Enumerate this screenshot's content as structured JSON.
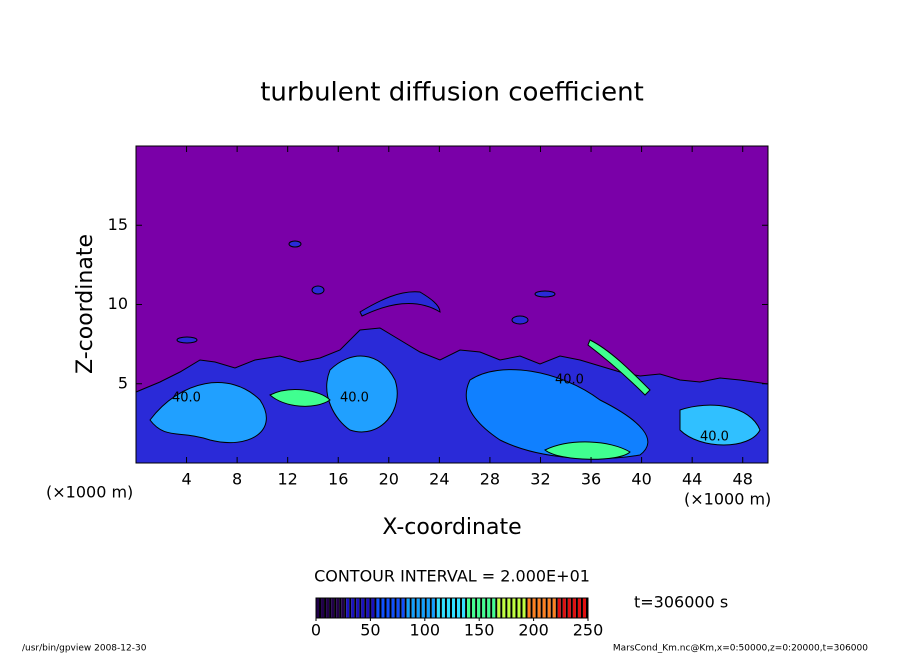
{
  "chart_data": {
    "type": "contour",
    "title": "turbulent diffusion coefficient",
    "xlabel": "X-coordinate",
    "ylabel": "Z-coordinate",
    "xunit": "(×1000 m)",
    "yunit": "(×1000 m)",
    "xlim": [
      0,
      50
    ],
    "ylim": [
      0,
      20
    ],
    "xticks": [
      4,
      8,
      12,
      16,
      20,
      24,
      28,
      32,
      36,
      40,
      44,
      48
    ],
    "yticks": [
      5,
      10,
      15
    ],
    "contour_interval": "CONTOUR INTERVAL = 2.000E+01",
    "time_label": "t=306000 s",
    "colorbar": {
      "clim": [
        0,
        250
      ],
      "ticks": [
        0,
        50,
        100,
        150,
        200,
        250
      ],
      "colormap": [
        "#20004a",
        "#1a10c0",
        "#1050ff",
        "#10a0ff",
        "#30e0ff",
        "#40ff90",
        "#c0ff40",
        "#ff8020",
        "#e01010"
      ]
    },
    "annotations": [
      "40.0",
      "40.0",
      "40.0",
      "40.0"
    ],
    "footer_left": "/usr/bin/gpview   2008-12-30",
    "footer_right": "MarsCond_Km.nc@Km,x=0:50000,z=0:20000,t=306000"
  }
}
